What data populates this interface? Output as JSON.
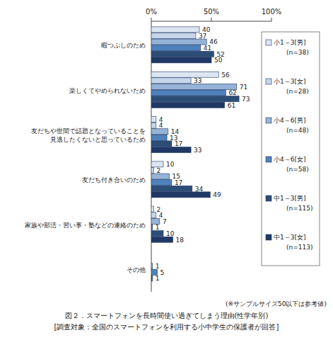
{
  "chart_data": {
    "type": "bar",
    "orientation": "horizontal",
    "title": "図２．スマートフォンを長時間使い過ぎてしまう理由(性学年別)",
    "subtitle": "[調査対象：全国のスマートフォンを利用する小中学生の保護者が回答]",
    "annotations": [
      "(※サンプルサイズ50以下は参考値)"
    ],
    "categories": [
      "暇つぶしのため",
      "楽しくてやめられないため",
      "友だちや世間で話題となっていることを\n見逃したくないと思っているため",
      "友だち付き合いのため",
      "家族や部活・習い事・塾などの連絡のため",
      "その他"
    ],
    "series": [
      {
        "name": "小1～3[男]",
        "n_label": "(n=38)",
        "color": "#dce6f2",
        "values": [
          40,
          56,
          4,
          10,
          2,
          null
        ]
      },
      {
        "name": "小1～3[女]",
        "n_label": "(n=28)",
        "color": "#c6d6ea",
        "values": [
          37,
          33,
          4,
          2,
          4,
          null
        ]
      },
      {
        "name": "小4～6[男]",
        "n_label": "(n=48)",
        "color": "#95b3d7",
        "values": [
          46,
          71,
          14,
          15,
          7,
          1
        ]
      },
      {
        "name": "小4～6[女]",
        "n_label": "(n=58)",
        "color": "#4f81bd",
        "values": [
          41,
          62,
          13,
          17,
          1,
          5
        ]
      },
      {
        "name": "中1～3[男]",
        "n_label": "(n=115)",
        "color": "#2c4d75",
        "values": [
          52,
          73,
          17,
          34,
          10,
          1
        ]
      },
      {
        "name": "中1～3[女]",
        "n_label": "(n=113)",
        "color": "#1f3864",
        "values": [
          50,
          61,
          33,
          49,
          18,
          null
        ]
      }
    ],
    "xlim": [
      0,
      100
    ],
    "xticks": [
      {
        "value": 0,
        "label": "0%"
      },
      {
        "value": 50,
        "label": "50%"
      },
      {
        "value": 100,
        "label": "100%"
      }
    ],
    "grid": false,
    "legend": "right",
    "data_labels": true
  }
}
